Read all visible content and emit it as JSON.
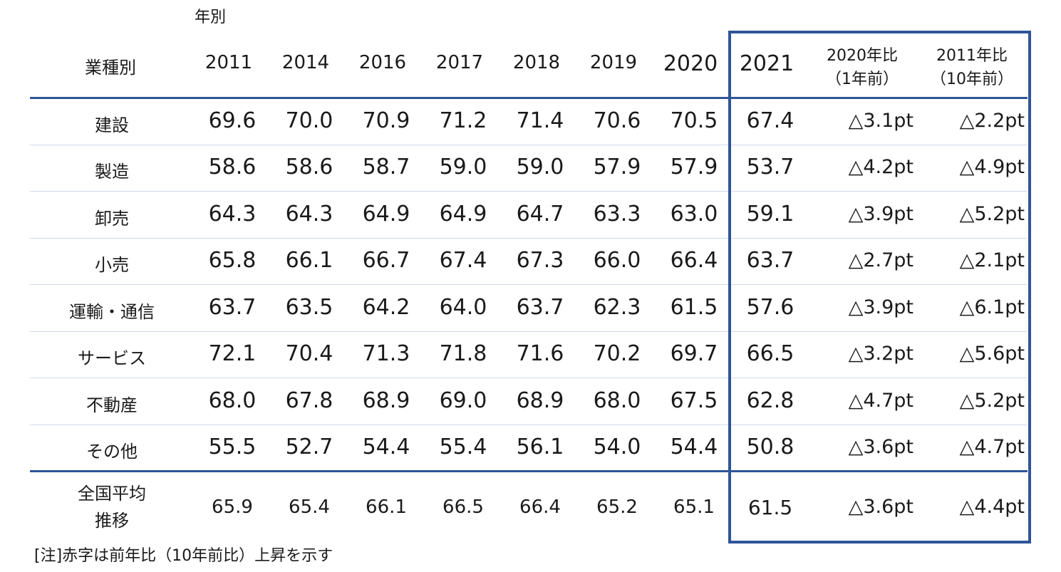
{
  "top_label": "年別",
  "header": {
    "category_label": "業種別",
    "years": [
      "2011",
      "2014",
      "2016",
      "2017",
      "2018",
      "2019",
      "2020",
      "2021"
    ],
    "cmp1": [
      "2020年比",
      "（1年前）"
    ],
    "cmp2": [
      "2011年比",
      "（10年前）"
    ]
  },
  "rows": [
    {
      "name": "建設",
      "values": [
        "69.6",
        "70.0",
        "70.9",
        "71.2",
        "71.4",
        "70.6",
        "70.5",
        "67.4"
      ],
      "cmp1": "△3.1pt",
      "cmp2": "△2.2pt"
    },
    {
      "name": "製造",
      "values": [
        "58.6",
        "58.6",
        "58.7",
        "59.0",
        "59.0",
        "57.9",
        "57.9",
        "53.7"
      ],
      "cmp1": "△4.2pt",
      "cmp2": "△4.9pt"
    },
    {
      "name": "卸売",
      "values": [
        "64.3",
        "64.3",
        "64.9",
        "64.9",
        "64.7",
        "63.3",
        "63.0",
        "59.1"
      ],
      "cmp1": "△3.9pt",
      "cmp2": "△5.2pt"
    },
    {
      "name": "小売",
      "values": [
        "65.8",
        "66.1",
        "66.7",
        "67.4",
        "67.3",
        "66.0",
        "66.4",
        "63.7"
      ],
      "cmp1": "△2.7pt",
      "cmp2": "△2.1pt"
    },
    {
      "name": "運輸・通信",
      "values": [
        "63.7",
        "63.5",
        "64.2",
        "64.0",
        "63.7",
        "62.3",
        "61.5",
        "57.6"
      ],
      "cmp1": "△3.9pt",
      "cmp2": "△6.1pt"
    },
    {
      "name": "サービス",
      "values": [
        "72.1",
        "70.4",
        "71.3",
        "71.8",
        "71.6",
        "70.2",
        "69.7",
        "66.5"
      ],
      "cmp1": "△3.2pt",
      "cmp2": "△5.6pt"
    },
    {
      "name": "不動産",
      "values": [
        "68.0",
        "67.8",
        "68.9",
        "69.0",
        "68.9",
        "68.0",
        "67.5",
        "62.8"
      ],
      "cmp1": "△4.7pt",
      "cmp2": "△5.2pt"
    },
    {
      "name": "その他",
      "values": [
        "55.5",
        "52.7",
        "54.4",
        "55.4",
        "56.1",
        "54.0",
        "54.4",
        "50.8"
      ],
      "cmp1": "△3.6pt",
      "cmp2": "△4.7pt"
    }
  ],
  "average": {
    "label": [
      "全国平均",
      "推移"
    ],
    "values": [
      "65.9",
      "65.4",
      "66.1",
      "66.5",
      "66.4",
      "65.2",
      "65.1",
      "61.5"
    ],
    "cmp1": "△3.6pt",
    "cmp2": "△4.4pt"
  },
  "note": "[注]赤字は前年比（10年前比）上昇を示す",
  "colors": {
    "frame": "#2f5597",
    "row_line": "#cfd9ea"
  }
}
